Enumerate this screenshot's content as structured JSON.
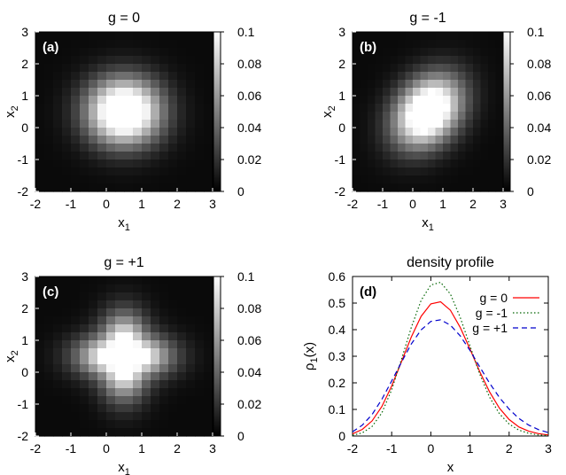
{
  "chart_data": [
    {
      "type": "heatmap",
      "panel_label": "(a)",
      "title": "g = 0",
      "xlabel": "x",
      "xlabel_sub": "1",
      "ylabel": "x",
      "ylabel_sub": "2",
      "xlim": [
        -2,
        3
      ],
      "ylim": [
        -2,
        3
      ],
      "xticks": [
        "-2",
        "-1",
        "0",
        "1",
        "2",
        "3"
      ],
      "yticks": [
        "-2",
        "-1",
        "0",
        "1",
        "2",
        "3"
      ],
      "colorbar_range": [
        0,
        0.1
      ],
      "colorbar_ticks": [
        "0",
        "0.02",
        "0.04",
        "0.06",
        "0.08",
        "0.1"
      ],
      "colormap": "grayscale",
      "density_peak_center": [
        0.5,
        0.5
      ],
      "deformation_g": 0
    },
    {
      "type": "heatmap",
      "panel_label": "(b)",
      "title": "g = -1",
      "xlabel": "x",
      "xlabel_sub": "1",
      "ylabel": "x",
      "ylabel_sub": "2",
      "xlim": [
        -2,
        3
      ],
      "ylim": [
        -2,
        3
      ],
      "xticks": [
        "-2",
        "-1",
        "0",
        "1",
        "2",
        "3"
      ],
      "yticks": [
        "-2",
        "-1",
        "0",
        "1",
        "2",
        "3"
      ],
      "colorbar_range": [
        0,
        0.1
      ],
      "colorbar_ticks": [
        "0",
        "0.02",
        "0.04",
        "0.06",
        "0.08",
        "0.1"
      ],
      "colormap": "grayscale",
      "density_peak_center": [
        0.5,
        0.5
      ],
      "deformation_g": -1
    },
    {
      "type": "heatmap",
      "panel_label": "(c)",
      "title": "g = +1",
      "xlabel": "x",
      "xlabel_sub": "1",
      "ylabel": "x",
      "ylabel_sub": "2",
      "xlim": [
        -2,
        3
      ],
      "ylim": [
        -2,
        3
      ],
      "xticks": [
        "-2",
        "-1",
        "0",
        "1",
        "2",
        "3"
      ],
      "yticks": [
        "-2",
        "-1",
        "0",
        "1",
        "2",
        "3"
      ],
      "colorbar_range": [
        0,
        0.1
      ],
      "colorbar_ticks": [
        "0",
        "0.02",
        "0.04",
        "0.06",
        "0.08",
        "0.1"
      ],
      "colormap": "grayscale",
      "density_peak_center": [
        0.5,
        0.5
      ],
      "deformation_g": 1
    },
    {
      "type": "line",
      "panel_label": "(d)",
      "title": "density profile",
      "xlabel": "x",
      "ylabel": "ρ",
      "ylabel_sub": "1",
      "ylabel_suffix": "(x)",
      "xlim": [
        -2,
        3
      ],
      "ylim": [
        0,
        0.6
      ],
      "xticks": [
        "-2",
        "-1",
        "0",
        "1",
        "2",
        "3"
      ],
      "yticks": [
        "0",
        "0.1",
        "0.2",
        "0.3",
        "0.4",
        "0.5",
        "0.6"
      ],
      "legend_position": "top-right",
      "x": [
        -2,
        -1.75,
        -1.5,
        -1.25,
        -1,
        -0.75,
        -0.5,
        -0.25,
        0,
        0.25,
        0.5,
        0.75,
        1,
        1.25,
        1.5,
        1.75,
        2,
        2.25,
        2.5,
        2.75,
        3
      ],
      "series": [
        {
          "name": "g = 0",
          "color": "#ff0000",
          "dash": "solid",
          "values": [
            0.008,
            0.025,
            0.057,
            0.111,
            0.188,
            0.28,
            0.372,
            0.45,
            0.497,
            0.505,
            0.473,
            0.409,
            0.327,
            0.242,
            0.166,
            0.105,
            0.062,
            0.034,
            0.018,
            0.009,
            0.004
          ]
        },
        {
          "name": "g = -1",
          "color": "#006400",
          "dash": "dotted",
          "values": [
            0.003,
            0.012,
            0.036,
            0.087,
            0.174,
            0.289,
            0.408,
            0.51,
            0.568,
            0.578,
            0.534,
            0.447,
            0.339,
            0.233,
            0.146,
            0.084,
            0.045,
            0.022,
            0.01,
            0.004,
            0.002
          ]
        },
        {
          "name": "g = +1",
          "color": "#0000cc",
          "dash": "dashed",
          "values": [
            0.016,
            0.041,
            0.081,
            0.138,
            0.207,
            0.278,
            0.346,
            0.399,
            0.431,
            0.437,
            0.417,
            0.377,
            0.322,
            0.26,
            0.199,
            0.145,
            0.101,
            0.066,
            0.041,
            0.024,
            0.013
          ]
        }
      ]
    }
  ]
}
